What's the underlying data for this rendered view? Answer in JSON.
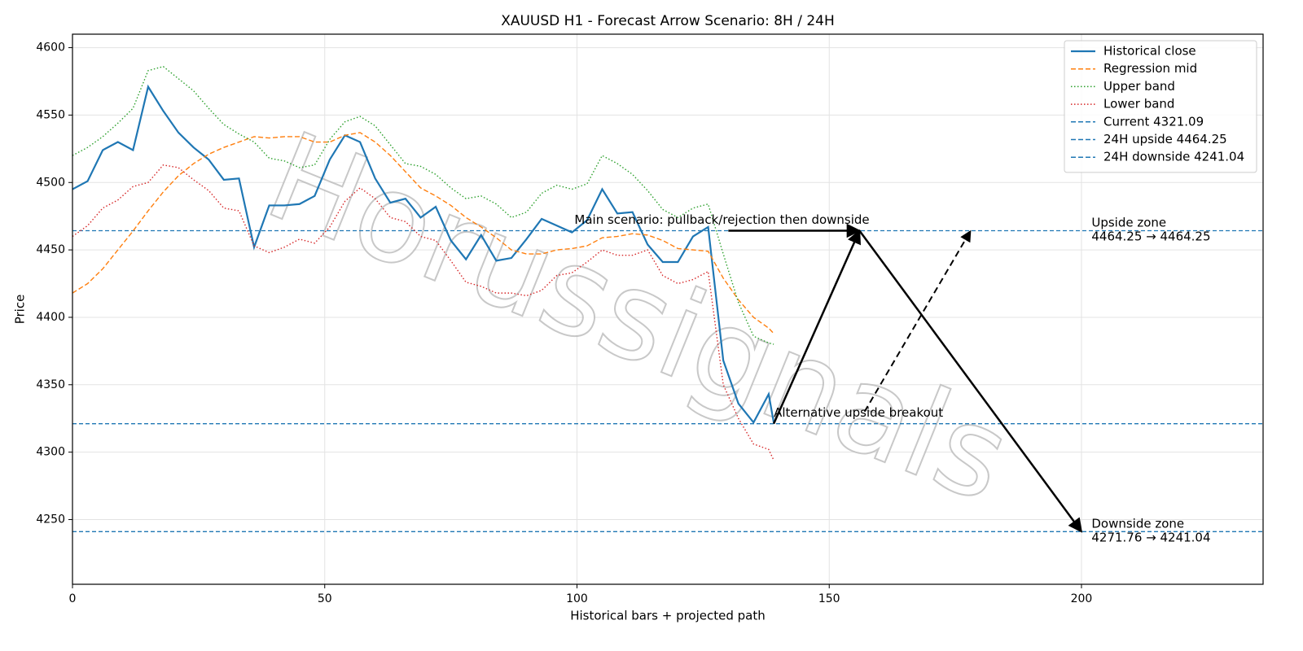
{
  "chart_data": {
    "type": "line",
    "title": "XAUUSD H1 - Forecast Arrow Scenario: 8H / 24H",
    "xlabel": "Historical bars + projected path",
    "ylabel": "Price",
    "watermark": "Horussignals",
    "xlim": [
      0,
      236
    ],
    "ylim": [
      4202,
      4610
    ],
    "xticks": [
      0,
      50,
      100,
      150,
      200
    ],
    "yticks": [
      4250,
      4300,
      4350,
      4400,
      4450,
      4500,
      4550,
      4600
    ],
    "grid": true,
    "legend": "upper right",
    "x": [
      0,
      3,
      6,
      9,
      12,
      15,
      18,
      21,
      24,
      27,
      30,
      33,
      36,
      39,
      42,
      45,
      48,
      51,
      54,
      57,
      60,
      63,
      66,
      69,
      72,
      75,
      78,
      81,
      84,
      87,
      90,
      93,
      96,
      99,
      102,
      105,
      108,
      111,
      114,
      117,
      120,
      123,
      126,
      129,
      132,
      135,
      138,
      139
    ],
    "series": [
      {
        "name": "Historical close",
        "color": "#1f77b4",
        "style": "solid",
        "values": [
          4495,
          4501,
          4524,
          4530,
          4524,
          4571,
          4553,
          4537,
          4526,
          4517,
          4502,
          4503,
          4452,
          4483,
          4483,
          4484,
          4490,
          4517,
          4535,
          4530,
          4503,
          4485,
          4488,
          4474,
          4482,
          4457,
          4443,
          4461,
          4442,
          4444,
          4458,
          4473,
          4468,
          4463,
          4472,
          4495,
          4477,
          4478,
          4454,
          4441,
          4441,
          4460,
          4467,
          4368,
          4336,
          4322,
          4343,
          4322
        ]
      },
      {
        "name": "Regression mid",
        "color": "#ff7f0e",
        "style": "dashed",
        "values": [
          4418,
          4425,
          4436,
          4450,
          4464,
          4479,
          4493,
          4505,
          4514,
          4521,
          4526,
          4530,
          4534,
          4533,
          4534,
          4534,
          4530,
          4530,
          4535,
          4537,
          4530,
          4520,
          4508,
          4496,
          4490,
          4483,
          4474,
          4467,
          4459,
          4450,
          4447,
          4447,
          4450,
          4451,
          4453,
          4459,
          4460,
          4462,
          4461,
          4457,
          4451,
          4450,
          4449,
          4429,
          4413,
          4400,
          4392,
          4388
        ]
      },
      {
        "name": "Upper band",
        "color": "#2ca02c",
        "style": "dotted",
        "values": [
          4520,
          4526,
          4534,
          4544,
          4555,
          4583,
          4586,
          4577,
          4568,
          4555,
          4543,
          4536,
          4530,
          4518,
          4516,
          4511,
          4513,
          4532,
          4545,
          4549,
          4542,
          4528,
          4514,
          4512,
          4506,
          4496,
          4488,
          4490,
          4484,
          4474,
          4478,
          4492,
          4498,
          4495,
          4499,
          4520,
          4514,
          4506,
          4494,
          4480,
          4474,
          4481,
          4484,
          4447,
          4411,
          4386,
          4381,
          4380
        ]
      },
      {
        "name": "Lower band",
        "color": "#d62728",
        "style": "dotted",
        "values": [
          4460,
          4468,
          4481,
          4487,
          4497,
          4500,
          4513,
          4511,
          4502,
          4494,
          4481,
          4479,
          4453,
          4448,
          4452,
          4458,
          4455,
          4467,
          4486,
          4496,
          4488,
          4474,
          4471,
          4460,
          4457,
          4442,
          4426,
          4423,
          4418,
          4418,
          4416,
          4420,
          4431,
          4433,
          4441,
          4450,
          4446,
          4446,
          4450,
          4431,
          4425,
          4428,
          4434,
          4350,
          4325,
          4306,
          4302,
          4294
        ]
      }
    ],
    "hlines": [
      {
        "name": "Current 4321.09",
        "value": 4321.09,
        "color": "#1f77b4"
      },
      {
        "name": "24H upside 4464.25",
        "value": 4464.25,
        "color": "#1f77b4"
      },
      {
        "name": "24H downside 4241.04",
        "value": 4241.04,
        "color": "#1f77b4"
      }
    ],
    "arrows": [
      {
        "x": [
          139,
          156
        ],
        "y": [
          4321.09,
          4464.25
        ],
        "style": "solid"
      },
      {
        "x": [
          156,
          200
        ],
        "y": [
          4464.25,
          4241.04
        ],
        "style": "solid"
      },
      {
        "x": [
          157,
          178
        ],
        "y": [
          4330,
          4464
        ],
        "style": "dashed"
      },
      {
        "x": [
          130,
          156
        ],
        "y": [
          4464.25,
          4464.25
        ],
        "style": "solid"
      }
    ],
    "annotations": [
      {
        "text": "Main scenario: pullback/rejection then downside",
        "x": 99.5,
        "y": 4467
      },
      {
        "text": "Alternative upside breakout",
        "x": 139,
        "y": 4324
      },
      {
        "lines": [
          "Upside zone",
          "4464.25 → 4464.25"
        ],
        "x": 202,
        "y": 4464.25
      },
      {
        "lines": [
          "Downside zone",
          "4271.76 → 4241.04"
        ],
        "x": 202,
        "y": 4241.04
      }
    ]
  }
}
